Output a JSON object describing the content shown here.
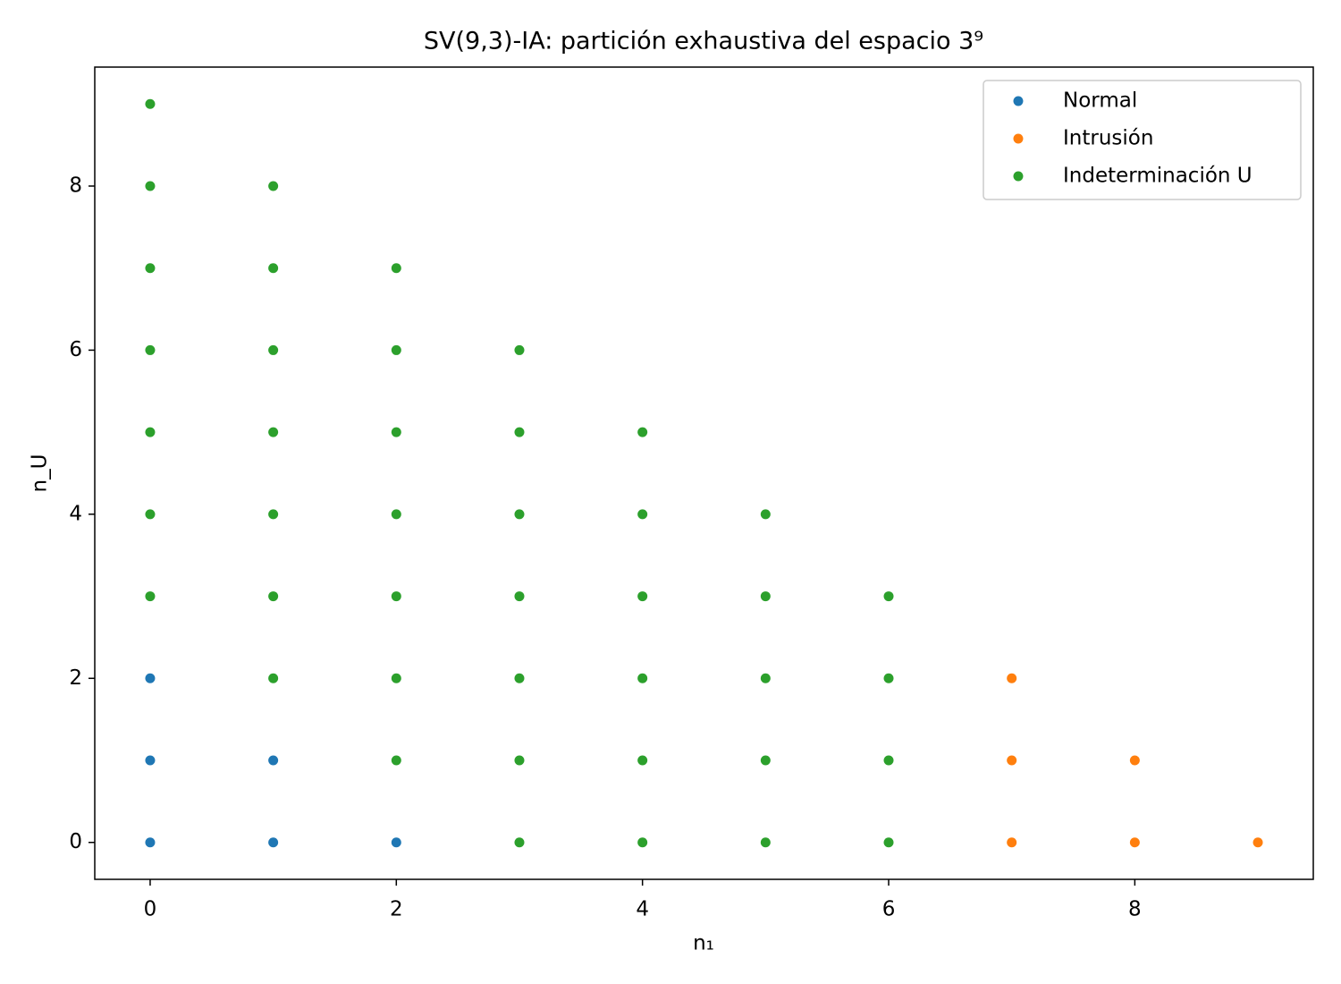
{
  "chart_data": {
    "type": "scatter",
    "title": "SV(9,3)-IA: partición exhaustiva del espacio 3⁹",
    "x_label": "n₁",
    "y_label": "n_U",
    "xlim": [
      -0.45,
      9.45
    ],
    "ylim": [
      -0.45,
      9.45
    ],
    "xticks": [
      0,
      2,
      4,
      6,
      8
    ],
    "yticks": [
      0,
      2,
      4,
      6,
      8
    ],
    "grid": false,
    "legend": "upper-right",
    "series": [
      {
        "name": "Normal",
        "color": "#1f77b4",
        "x": [
          0,
          0,
          0,
          1,
          1,
          2
        ],
        "values": [
          0,
          1,
          2,
          0,
          1,
          0
        ]
      },
      {
        "name": "Intrusión",
        "color": "#ff7f0e",
        "x": [
          7,
          7,
          7,
          8,
          8,
          9
        ],
        "values": [
          0,
          1,
          2,
          0,
          1,
          0
        ]
      },
      {
        "name": "Indeterminación U",
        "color": "#2ca02c",
        "x": [
          0,
          0,
          0,
          0,
          0,
          0,
          0,
          1,
          1,
          1,
          1,
          1,
          1,
          1,
          2,
          2,
          2,
          2,
          2,
          2,
          2,
          3,
          3,
          3,
          3,
          3,
          3,
          3,
          4,
          4,
          4,
          4,
          4,
          4,
          5,
          5,
          5,
          5,
          5,
          6,
          6,
          6,
          6
        ],
        "values": [
          3,
          4,
          5,
          6,
          7,
          8,
          9,
          2,
          3,
          4,
          5,
          6,
          7,
          8,
          1,
          2,
          3,
          4,
          5,
          6,
          7,
          0,
          1,
          2,
          3,
          4,
          5,
          6,
          0,
          1,
          2,
          3,
          4,
          5,
          0,
          1,
          2,
          3,
          4,
          0,
          1,
          2,
          3
        ]
      }
    ]
  }
}
